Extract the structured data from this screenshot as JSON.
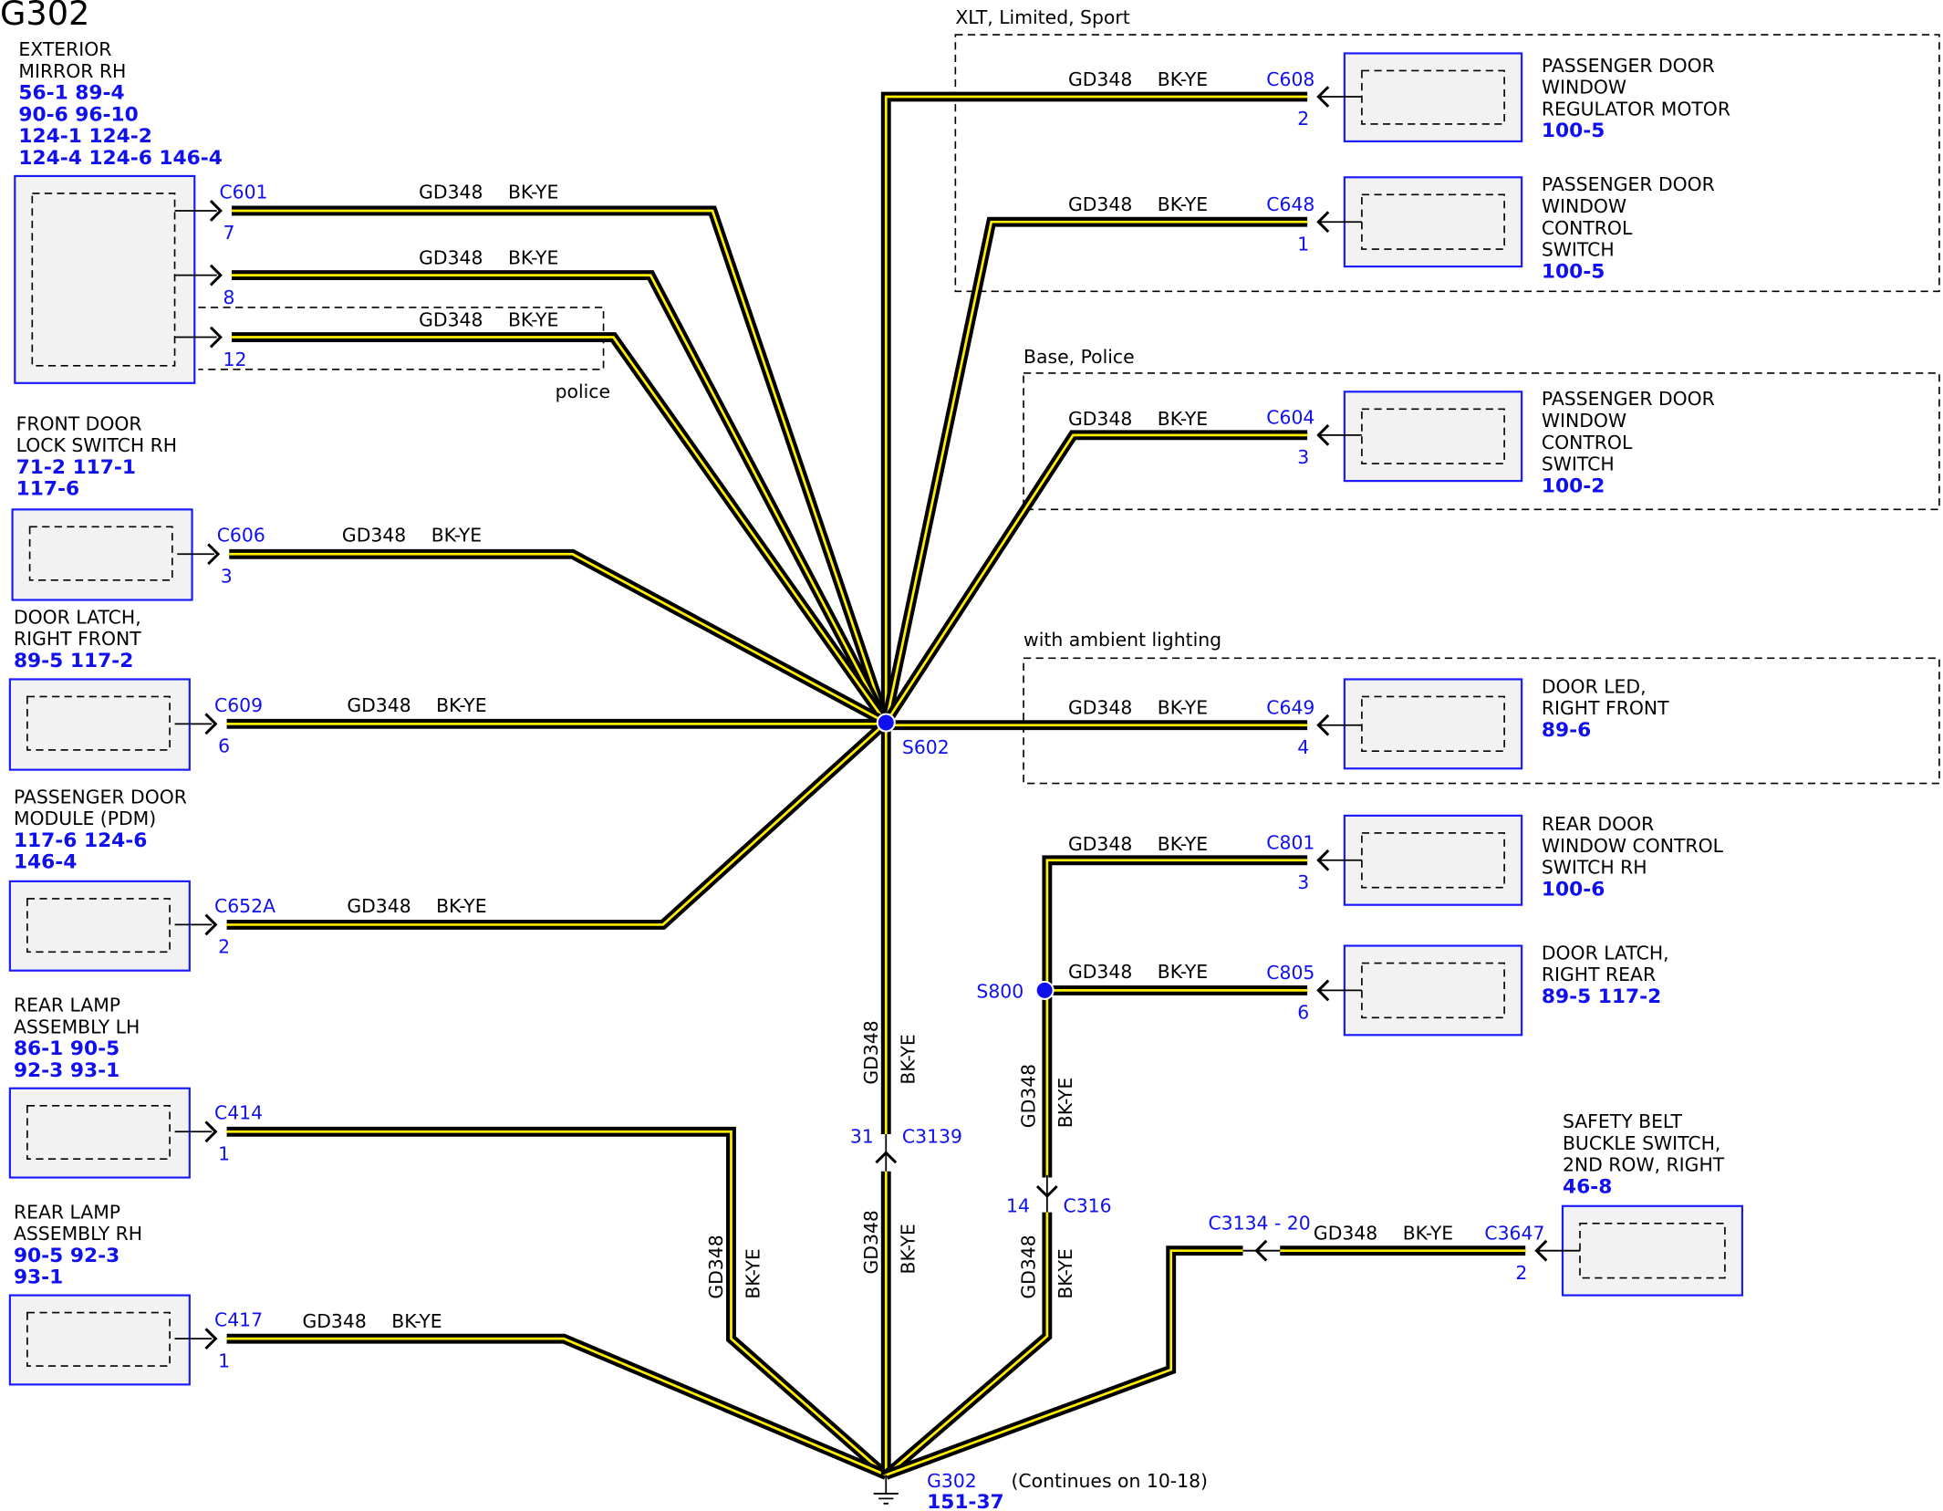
{
  "title": "G302",
  "wire": {
    "circuit": "GD348",
    "color": "BK-YE",
    "colors": {
      "insulation": "#000000",
      "stripe": "#ffee00",
      "reference": "#1010ee"
    }
  },
  "groups": [
    {
      "caption": "XLT, Limited, Sport"
    },
    {
      "caption": "Base, Police"
    },
    {
      "caption": "with ambient lighting"
    },
    {
      "caption": "police"
    }
  ],
  "left_components": [
    {
      "title_lines": [
        "EXTERIOR",
        "MIRROR RH"
      ],
      "refs": [
        "56-1   89-4",
        "90-6   96-10",
        "124-1 124-2",
        "124-4 124-6  146-4"
      ],
      "connector": "C601",
      "pins": [
        "7",
        "8",
        "12"
      ]
    },
    {
      "title_lines": [
        "FRONT DOOR",
        "LOCK SWITCH RH"
      ],
      "refs": [
        "71-2   117-1",
        "117-6"
      ],
      "connector": "C606",
      "pins": [
        "3"
      ]
    },
    {
      "title_lines": [
        "DOOR LATCH,",
        "RIGHT FRONT"
      ],
      "refs": [
        "89-5   117-2"
      ],
      "connector": "C609",
      "pins": [
        "6"
      ]
    },
    {
      "title_lines": [
        "PASSENGER DOOR",
        "MODULE (PDM)"
      ],
      "refs": [
        "117-6 124-6",
        "146-4"
      ],
      "connector": "C652A",
      "pins": [
        "2"
      ]
    },
    {
      "title_lines": [
        "REAR LAMP",
        "ASSEMBLY LH"
      ],
      "refs": [
        "86-1   90-5",
        "92-3   93-1"
      ],
      "connector": "C414",
      "pins": [
        "1"
      ]
    },
    {
      "title_lines": [
        "REAR LAMP",
        "ASSEMBLY RH"
      ],
      "refs": [
        "90-5   92-3",
        "93-1"
      ],
      "connector": "C417",
      "pins": [
        "1"
      ]
    }
  ],
  "right_components": [
    {
      "title_lines": [
        "PASSENGER DOOR",
        "WINDOW",
        "REGULATOR MOTOR"
      ],
      "refs": [
        "100-5"
      ],
      "connector": "C608",
      "pins": [
        "2"
      ]
    },
    {
      "title_lines": [
        "PASSENGER DOOR",
        "WINDOW",
        "CONTROL",
        "SWITCH"
      ],
      "refs": [
        "100-5"
      ],
      "connector": "C648",
      "pins": [
        "1"
      ]
    },
    {
      "title_lines": [
        "PASSENGER DOOR",
        "WINDOW",
        "CONTROL",
        "SWITCH"
      ],
      "refs": [
        "100-2"
      ],
      "connector": "C604",
      "pins": [
        "3"
      ]
    },
    {
      "title_lines": [
        "DOOR LED,",
        "RIGHT FRONT"
      ],
      "refs": [
        "89-6"
      ],
      "connector": "C649",
      "pins": [
        "4"
      ]
    },
    {
      "title_lines": [
        "REAR DOOR",
        "WINDOW CONTROL",
        "SWITCH RH"
      ],
      "refs": [
        "100-6"
      ],
      "connector": "C801",
      "pins": [
        "3"
      ]
    },
    {
      "title_lines": [
        "DOOR LATCH,",
        "RIGHT REAR"
      ],
      "refs": [
        "89-5   117-2"
      ],
      "connector": "C805",
      "pins": [
        "6"
      ]
    },
    {
      "title_lines": [
        "SAFETY BELT",
        "BUCKLE SWITCH,",
        "2ND ROW, RIGHT"
      ],
      "refs": [
        "46-8"
      ],
      "connector": "C3647",
      "pins": [
        "2"
      ]
    }
  ],
  "splices": [
    {
      "id": "S602"
    },
    {
      "id": "S800"
    }
  ],
  "inline_connectors": [
    {
      "id": "C3139",
      "pin": "31"
    },
    {
      "id": "C316",
      "pin": "14"
    },
    {
      "id": "C3134 - 20"
    }
  ],
  "ground": {
    "id": "G302",
    "ref": "151-37",
    "note": "(Continues on 10-18)"
  }
}
